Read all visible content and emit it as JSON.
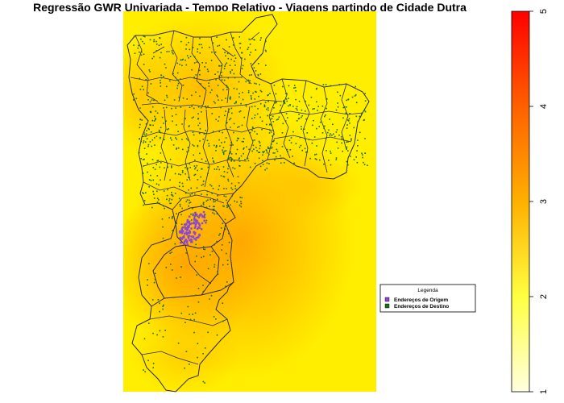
{
  "title": "Regressão GWR Univariada - Tempo Relativo - Viagens partindo de Cidade Dutra",
  "legend": {
    "title": "Legenda",
    "items": [
      {
        "label": "Endereços de Origem",
        "color": "#8e44d9"
      },
      {
        "label": "Endereços de Destino",
        "color": "#1b6b1b"
      }
    ]
  },
  "color_scale": {
    "min": 1,
    "max": 5,
    "ticks": [
      "1",
      "2",
      "3",
      "4",
      "5"
    ],
    "colors": [
      "#ffffe0",
      "#ffff00",
      "#ffa500",
      "#ff0000"
    ]
  },
  "colors": {
    "boundary": "#2b2b2b",
    "background": "#ffffff"
  }
}
